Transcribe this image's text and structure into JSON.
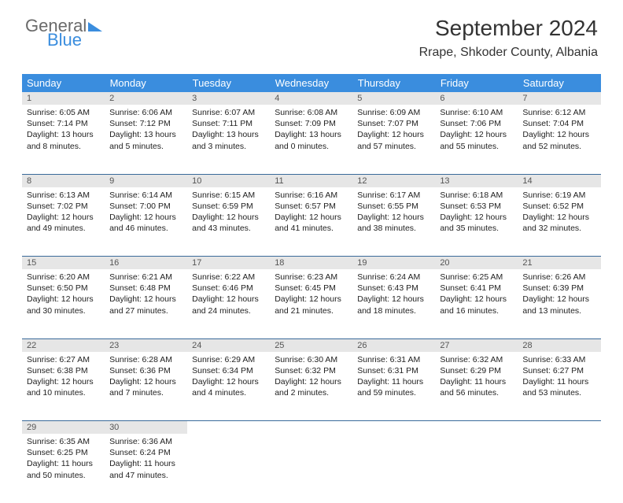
{
  "brand": {
    "g": "General",
    "b": "Blue"
  },
  "title": "September 2024",
  "location": "Rrape, Shkoder County, Albania",
  "colors": {
    "header_bg": "#3a8dde",
    "header_text": "#ffffff",
    "daynum_bg": "#e6e6e6",
    "daynum_text": "#555555",
    "border": "#3a6a9a",
    "body_text": "#222222",
    "logo_gray": "#6a6a6a",
    "logo_blue": "#3a8dde"
  },
  "weekdays": [
    "Sunday",
    "Monday",
    "Tuesday",
    "Wednesday",
    "Thursday",
    "Friday",
    "Saturday"
  ],
  "weeks": [
    [
      {
        "n": "1",
        "sr": "6:05 AM",
        "ss": "7:14 PM",
        "dl": "13 hours and 8 minutes."
      },
      {
        "n": "2",
        "sr": "6:06 AM",
        "ss": "7:12 PM",
        "dl": "13 hours and 5 minutes."
      },
      {
        "n": "3",
        "sr": "6:07 AM",
        "ss": "7:11 PM",
        "dl": "13 hours and 3 minutes."
      },
      {
        "n": "4",
        "sr": "6:08 AM",
        "ss": "7:09 PM",
        "dl": "13 hours and 0 minutes."
      },
      {
        "n": "5",
        "sr": "6:09 AM",
        "ss": "7:07 PM",
        "dl": "12 hours and 57 minutes."
      },
      {
        "n": "6",
        "sr": "6:10 AM",
        "ss": "7:06 PM",
        "dl": "12 hours and 55 minutes."
      },
      {
        "n": "7",
        "sr": "6:12 AM",
        "ss": "7:04 PM",
        "dl": "12 hours and 52 minutes."
      }
    ],
    [
      {
        "n": "8",
        "sr": "6:13 AM",
        "ss": "7:02 PM",
        "dl": "12 hours and 49 minutes."
      },
      {
        "n": "9",
        "sr": "6:14 AM",
        "ss": "7:00 PM",
        "dl": "12 hours and 46 minutes."
      },
      {
        "n": "10",
        "sr": "6:15 AM",
        "ss": "6:59 PM",
        "dl": "12 hours and 43 minutes."
      },
      {
        "n": "11",
        "sr": "6:16 AM",
        "ss": "6:57 PM",
        "dl": "12 hours and 41 minutes."
      },
      {
        "n": "12",
        "sr": "6:17 AM",
        "ss": "6:55 PM",
        "dl": "12 hours and 38 minutes."
      },
      {
        "n": "13",
        "sr": "6:18 AM",
        "ss": "6:53 PM",
        "dl": "12 hours and 35 minutes."
      },
      {
        "n": "14",
        "sr": "6:19 AM",
        "ss": "6:52 PM",
        "dl": "12 hours and 32 minutes."
      }
    ],
    [
      {
        "n": "15",
        "sr": "6:20 AM",
        "ss": "6:50 PM",
        "dl": "12 hours and 30 minutes."
      },
      {
        "n": "16",
        "sr": "6:21 AM",
        "ss": "6:48 PM",
        "dl": "12 hours and 27 minutes."
      },
      {
        "n": "17",
        "sr": "6:22 AM",
        "ss": "6:46 PM",
        "dl": "12 hours and 24 minutes."
      },
      {
        "n": "18",
        "sr": "6:23 AM",
        "ss": "6:45 PM",
        "dl": "12 hours and 21 minutes."
      },
      {
        "n": "19",
        "sr": "6:24 AM",
        "ss": "6:43 PM",
        "dl": "12 hours and 18 minutes."
      },
      {
        "n": "20",
        "sr": "6:25 AM",
        "ss": "6:41 PM",
        "dl": "12 hours and 16 minutes."
      },
      {
        "n": "21",
        "sr": "6:26 AM",
        "ss": "6:39 PM",
        "dl": "12 hours and 13 minutes."
      }
    ],
    [
      {
        "n": "22",
        "sr": "6:27 AM",
        "ss": "6:38 PM",
        "dl": "12 hours and 10 minutes."
      },
      {
        "n": "23",
        "sr": "6:28 AM",
        "ss": "6:36 PM",
        "dl": "12 hours and 7 minutes."
      },
      {
        "n": "24",
        "sr": "6:29 AM",
        "ss": "6:34 PM",
        "dl": "12 hours and 4 minutes."
      },
      {
        "n": "25",
        "sr": "6:30 AM",
        "ss": "6:32 PM",
        "dl": "12 hours and 2 minutes."
      },
      {
        "n": "26",
        "sr": "6:31 AM",
        "ss": "6:31 PM",
        "dl": "11 hours and 59 minutes."
      },
      {
        "n": "27",
        "sr": "6:32 AM",
        "ss": "6:29 PM",
        "dl": "11 hours and 56 minutes."
      },
      {
        "n": "28",
        "sr": "6:33 AM",
        "ss": "6:27 PM",
        "dl": "11 hours and 53 minutes."
      }
    ],
    [
      {
        "n": "29",
        "sr": "6:35 AM",
        "ss": "6:25 PM",
        "dl": "11 hours and 50 minutes."
      },
      {
        "n": "30",
        "sr": "6:36 AM",
        "ss": "6:24 PM",
        "dl": "11 hours and 47 minutes."
      },
      null,
      null,
      null,
      null,
      null
    ]
  ],
  "labels": {
    "sunrise": "Sunrise:",
    "sunset": "Sunset:",
    "daylight": "Daylight:"
  }
}
